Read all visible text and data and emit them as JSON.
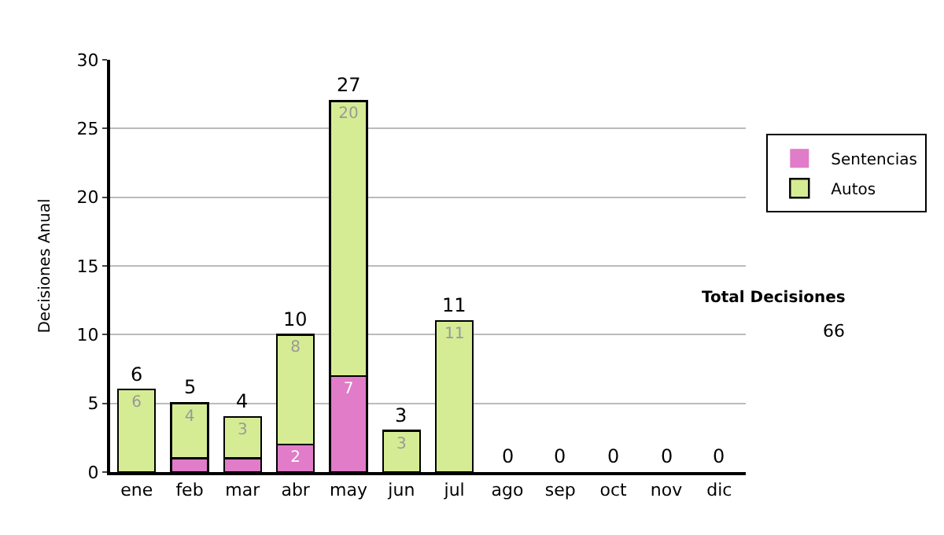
{
  "chart_data": {
    "type": "bar",
    "stacked": true,
    "ylabel": "Decisiones Anual",
    "categories": [
      "ene",
      "feb",
      "mar",
      "abr",
      "may",
      "jun",
      "jul",
      "ago",
      "sep",
      "oct",
      "nov",
      "dic"
    ],
    "series": [
      {
        "name": "Sentencias",
        "color": "#e07cc8",
        "values": [
          0,
          1,
          1,
          2,
          7,
          0,
          0,
          0,
          0,
          0,
          0,
          0
        ],
        "value_labels": [
          null,
          null,
          null,
          "2",
          "7",
          null,
          null,
          null,
          null,
          null,
          null,
          null
        ]
      },
      {
        "name": "Autos",
        "color": "#d6ec94",
        "values": [
          6,
          4,
          3,
          8,
          20,
          3,
          11,
          0,
          0,
          0,
          0,
          0
        ],
        "value_labels": [
          "6",
          "4",
          "3",
          "8",
          "20",
          "3",
          "11",
          null,
          null,
          null,
          null,
          null
        ]
      }
    ],
    "totals": [
      "6",
      "5",
      "4",
      "10",
      "27",
      "3",
      "11",
      "0",
      "0",
      "0",
      "0",
      "0"
    ],
    "ylim": [
      0,
      30
    ],
    "yticks": [
      0,
      5,
      10,
      15,
      20,
      25,
      30
    ],
    "grid": "y",
    "legend": "right",
    "annotations": [
      "Total Decisiones",
      "66"
    ]
  }
}
